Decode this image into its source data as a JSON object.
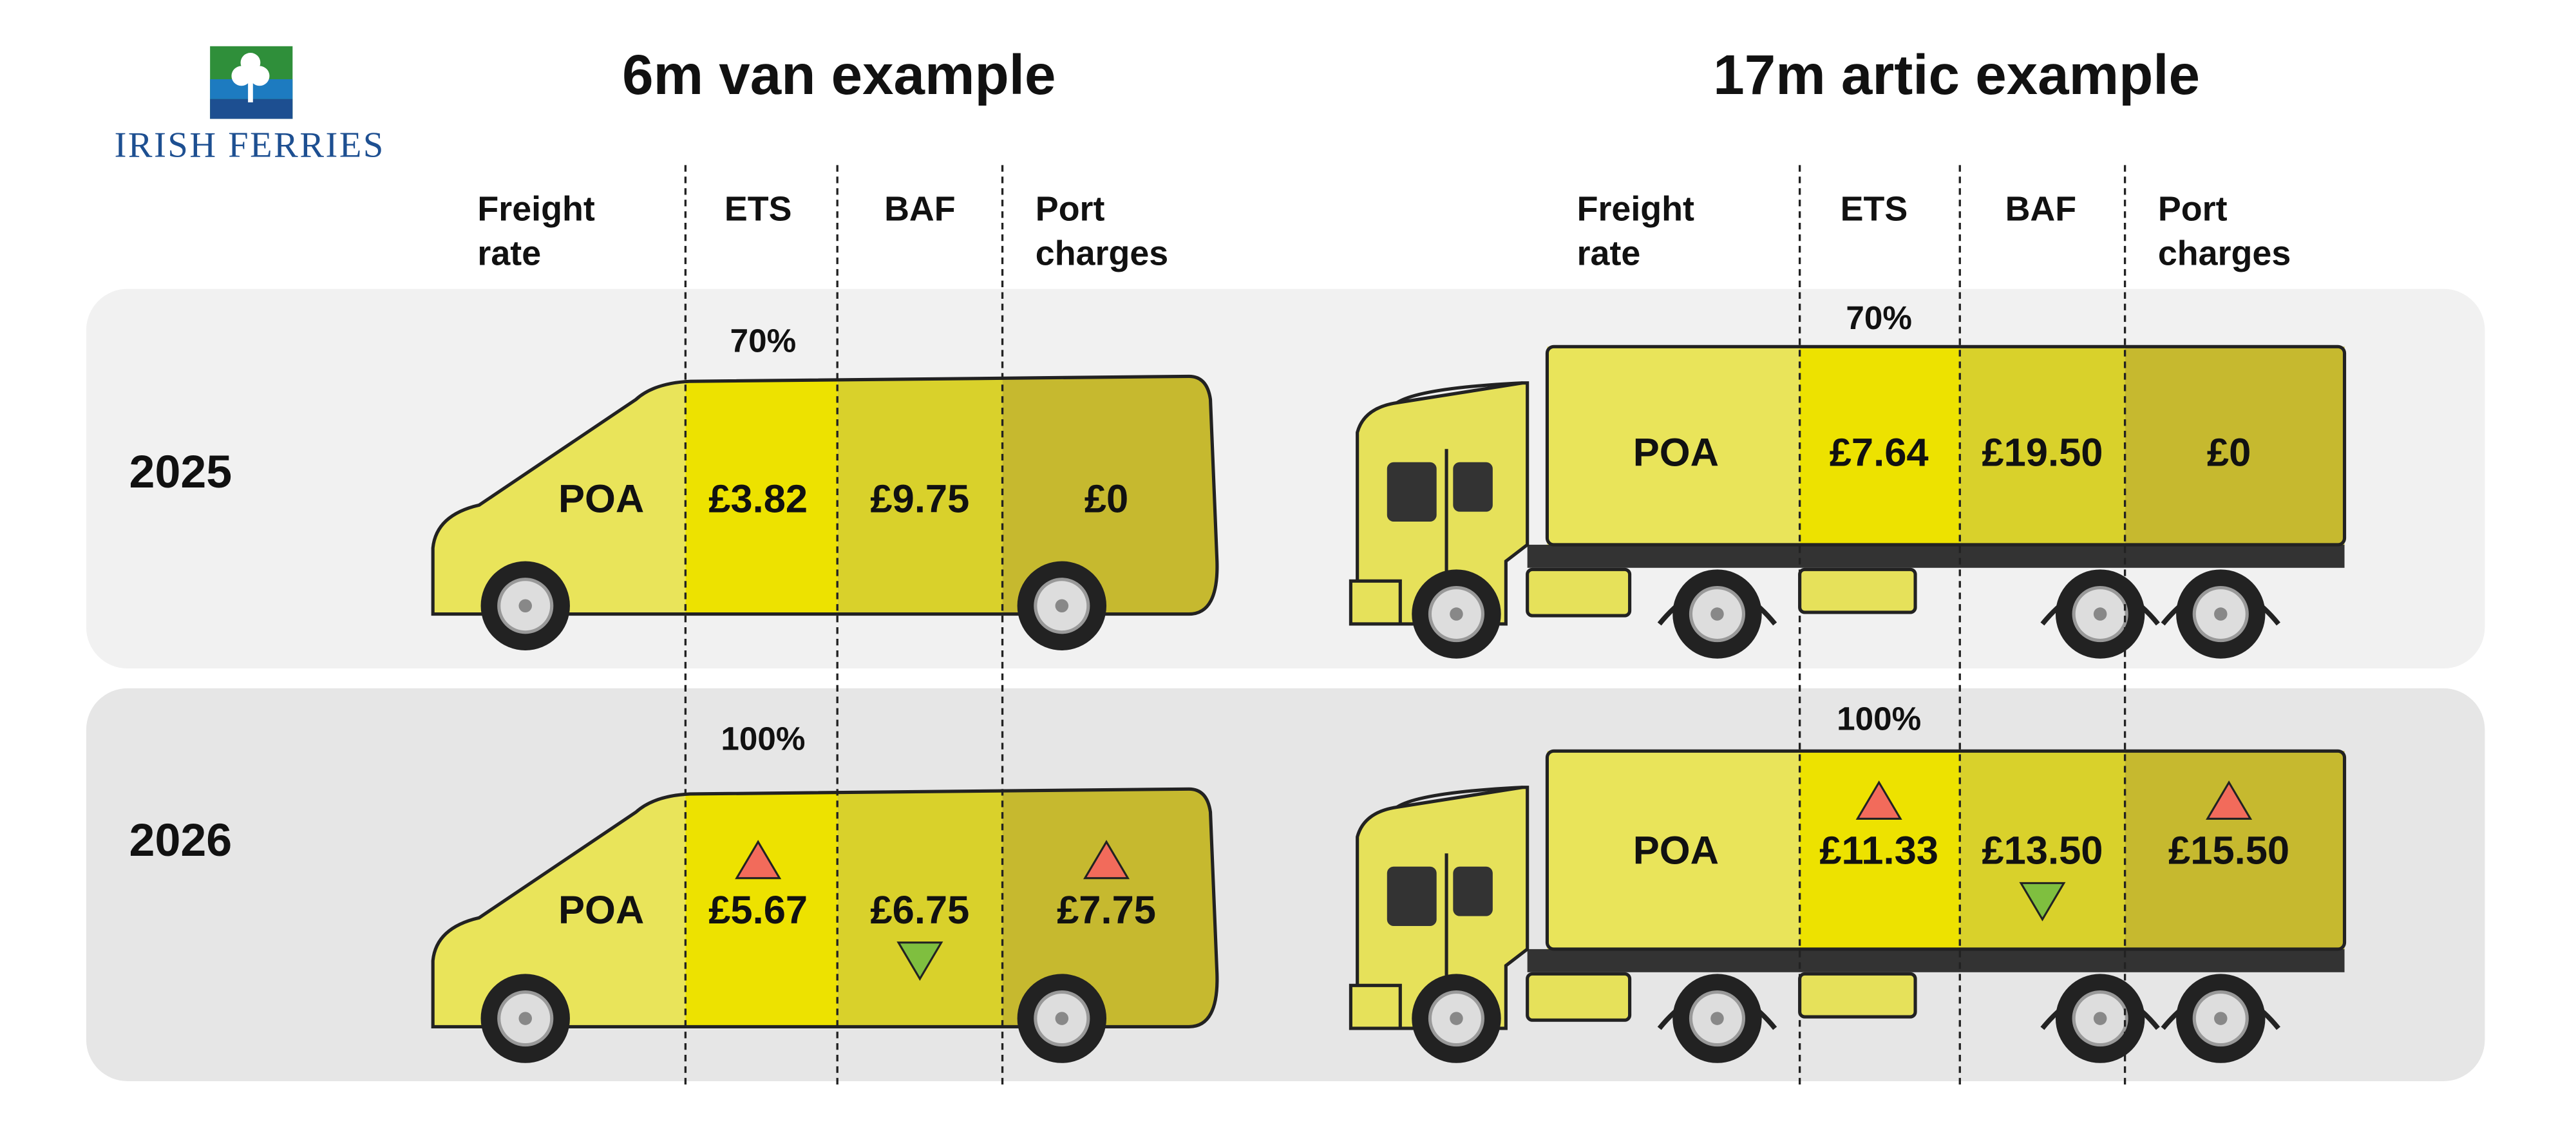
{
  "logo": "IRISH FERRIES",
  "panels": [
    {
      "title": "6m van example",
      "columns": [
        [
          "Freight",
          "rate"
        ],
        [
          "ETS"
        ],
        [
          "BAF"
        ],
        [
          "Port",
          "charges"
        ]
      ],
      "rows": [
        {
          "year": "2025",
          "ets_share": "70%",
          "cells": [
            {
              "text": "POA"
            },
            {
              "text": "£3.82"
            },
            {
              "text": "£9.75"
            },
            {
              "text": "£0"
            }
          ]
        },
        {
          "year": "2026",
          "ets_share": "100%",
          "cells": [
            {
              "text": "POA"
            },
            {
              "text": "£5.67",
              "trend": "up"
            },
            {
              "text": "£6.75",
              "trend": "down"
            },
            {
              "text": "£7.75",
              "trend": "up"
            }
          ]
        }
      ]
    },
    {
      "title": "17m artic example",
      "columns": [
        [
          "Freight",
          "rate"
        ],
        [
          "ETS"
        ],
        [
          "BAF"
        ],
        [
          "Port",
          "charges"
        ]
      ],
      "rows": [
        {
          "year": "2025",
          "ets_share": "70%",
          "cells": [
            {
              "text": "POA"
            },
            {
              "text": "£7.64"
            },
            {
              "text": "£19.50"
            },
            {
              "text": "£0"
            }
          ]
        },
        {
          "year": "2026",
          "ets_share": "100%",
          "cells": [
            {
              "text": "POA"
            },
            {
              "text": "£11.33",
              "trend": "up"
            },
            {
              "text": "£13.50",
              "trend": "down"
            },
            {
              "text": "£15.50",
              "trend": "up"
            }
          ]
        }
      ]
    }
  ]
}
